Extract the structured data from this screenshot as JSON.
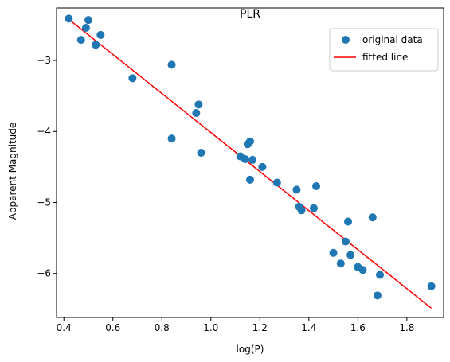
{
  "chart_data": {
    "type": "scatter",
    "title": "PLR",
    "xlabel": "log(P)",
    "ylabel": "Apparent Magnitude",
    "xlim": [
      0.37,
      1.95
    ],
    "ylim": [
      -6.62,
      -2.26
    ],
    "x_ticks": [
      0.4,
      0.6,
      0.8,
      1.0,
      1.2,
      1.4,
      1.6,
      1.8
    ],
    "x_tick_labels": [
      "0.4",
      "0.6",
      "0.8",
      "1.0",
      "1.2",
      "1.4",
      "1.6",
      "1.8"
    ],
    "y_ticks": [
      -3,
      -4,
      -5,
      -6
    ],
    "y_tick_labels": [
      "−3",
      "−4",
      "−5",
      "−6"
    ],
    "grid": false,
    "legend_position": "top-right",
    "series": [
      {
        "name": "original data",
        "type": "scatter",
        "color": "#1f77b4",
        "points": [
          [
            0.42,
            -2.41
          ],
          [
            0.47,
            -2.71
          ],
          [
            0.49,
            -2.54
          ],
          [
            0.5,
            -2.43
          ],
          [
            0.53,
            -2.78
          ],
          [
            0.55,
            -2.64
          ],
          [
            0.68,
            -3.25
          ],
          [
            0.84,
            -3.06
          ],
          [
            0.84,
            -4.1
          ],
          [
            0.94,
            -3.74
          ],
          [
            0.95,
            -3.62
          ],
          [
            0.96,
            -4.3
          ],
          [
            1.12,
            -4.35
          ],
          [
            1.14,
            -4.39
          ],
          [
            1.15,
            -4.18
          ],
          [
            1.16,
            -4.14
          ],
          [
            1.16,
            -4.68
          ],
          [
            1.17,
            -4.4
          ],
          [
            1.21,
            -4.5
          ],
          [
            1.27,
            -4.72
          ],
          [
            1.35,
            -4.82
          ],
          [
            1.36,
            -5.06
          ],
          [
            1.37,
            -5.11
          ],
          [
            1.42,
            -5.08
          ],
          [
            1.43,
            -4.77
          ],
          [
            1.5,
            -5.71
          ],
          [
            1.53,
            -5.86
          ],
          [
            1.55,
            -5.55
          ],
          [
            1.56,
            -5.27
          ],
          [
            1.57,
            -5.74
          ],
          [
            1.6,
            -5.91
          ],
          [
            1.62,
            -5.95
          ],
          [
            1.66,
            -5.21
          ],
          [
            1.68,
            -6.31
          ],
          [
            1.69,
            -6.02
          ],
          [
            1.9,
            -6.18
          ]
        ]
      },
      {
        "name": "fitted line",
        "type": "line",
        "color": "#ff0000",
        "points": [
          [
            0.42,
            -2.42
          ],
          [
            1.9,
            -6.49
          ]
        ]
      }
    ]
  }
}
